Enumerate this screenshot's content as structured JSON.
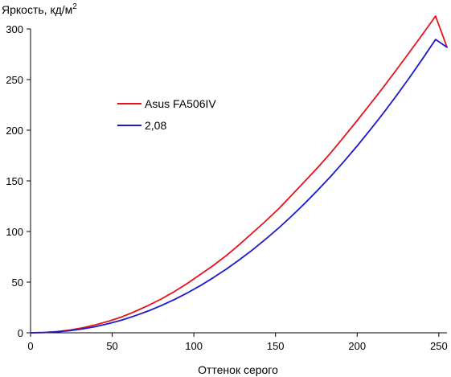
{
  "chart_data": {
    "type": "line",
    "title": "",
    "xlabel": "Оттенок серого",
    "ylabel_prefix": "Яркость, кд/м",
    "ylabel_superscript": "2",
    "xlim": [
      0,
      255
    ],
    "ylim": [
      0,
      300
    ],
    "x_ticks": [
      0,
      50,
      100,
      150,
      200,
      250
    ],
    "y_ticks": [
      0,
      50,
      100,
      150,
      200,
      250,
      300
    ],
    "grid": false,
    "legend_position": "upper-left-inside",
    "series": [
      {
        "name": "Asus FA506IV",
        "color": "#e8101a",
        "x": [
          0,
          8,
          16,
          24,
          32,
          40,
          48,
          56,
          64,
          72,
          80,
          88,
          96,
          104,
          112,
          120,
          128,
          136,
          144,
          152,
          160,
          168,
          176,
          184,
          192,
          200,
          208,
          216,
          224,
          232,
          240,
          248,
          255
        ],
        "y": [
          0,
          0.3,
          1.2,
          2.7,
          5.0,
          7.9,
          11.5,
          15.8,
          21.0,
          26.9,
          33.3,
          40.6,
          48.7,
          57.6,
          66.6,
          76.4,
          87.2,
          98.8,
          110.3,
          122.6,
          136.0,
          149.7,
          163.4,
          178.0,
          193.6,
          209.5,
          225.8,
          242.4,
          259.5,
          277.0,
          294.5,
          312.7,
          282.0
        ]
      },
      {
        "name": "2,08",
        "color": "#1a1acc",
        "x": [
          0,
          8,
          16,
          24,
          32,
          40,
          48,
          56,
          64,
          72,
          80,
          88,
          96,
          104,
          112,
          120,
          128,
          136,
          144,
          152,
          160,
          168,
          176,
          184,
          192,
          200,
          208,
          216,
          224,
          232,
          240,
          248,
          255
        ],
        "y": [
          0,
          0.2,
          0.9,
          2.1,
          3.9,
          6.2,
          9.1,
          12.6,
          16.8,
          21.5,
          26.8,
          32.8,
          39.4,
          46.6,
          54.5,
          63.0,
          72.2,
          82.0,
          92.5,
          103.6,
          115.4,
          127.9,
          141.0,
          154.8,
          169.3,
          184.5,
          200.3,
          216.8,
          234.0,
          251.9,
          270.4,
          289.6,
          282.0
        ]
      }
    ]
  }
}
